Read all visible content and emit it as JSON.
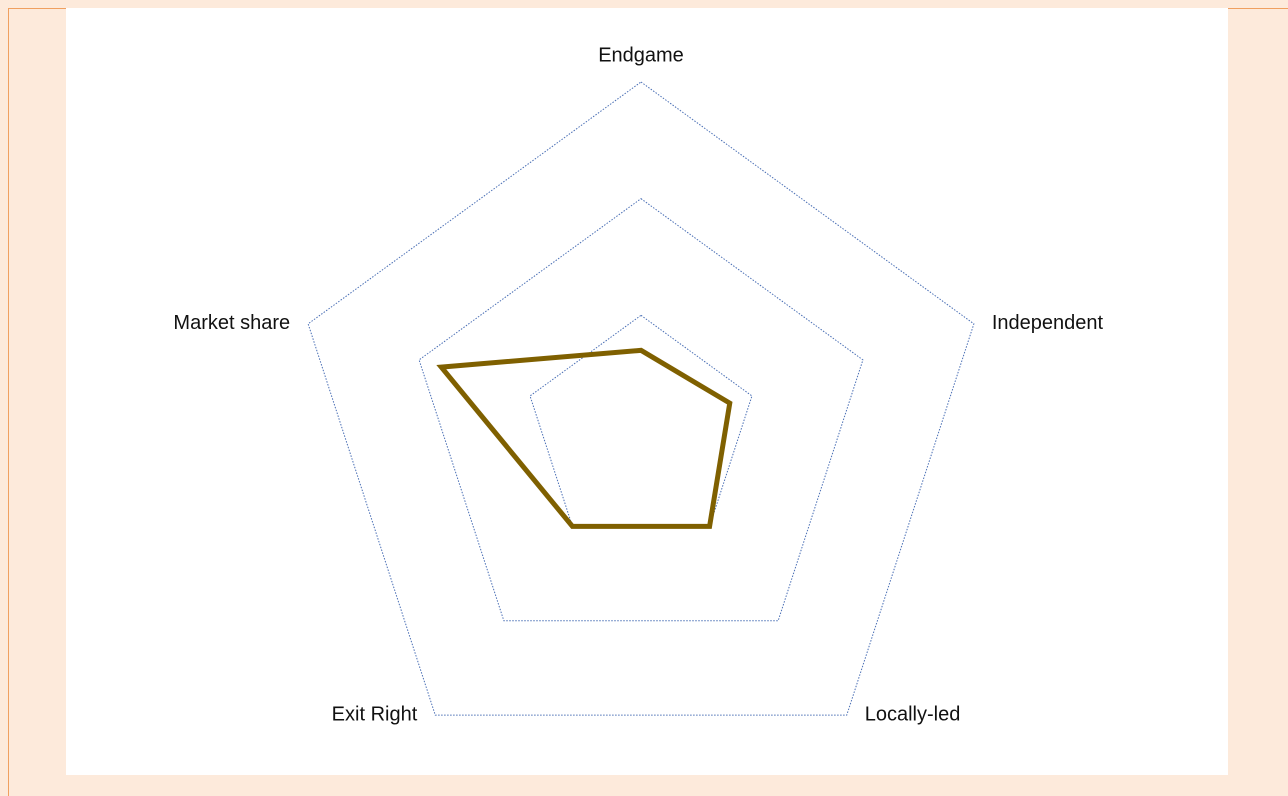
{
  "chart_data": {
    "type": "radar",
    "categories": [
      "Endgame",
      "Independent",
      "Locally-led",
      "Exit Right",
      "Market share"
    ],
    "values": [
      0.7,
      0.8,
      1,
      1,
      1.8
    ],
    "color": "#7f6000",
    "ylim": [
      0,
      3
    ],
    "yticks": [
      1,
      2,
      3
    ],
    "grid": true,
    "grid_color": "#4a6fb5"
  }
}
